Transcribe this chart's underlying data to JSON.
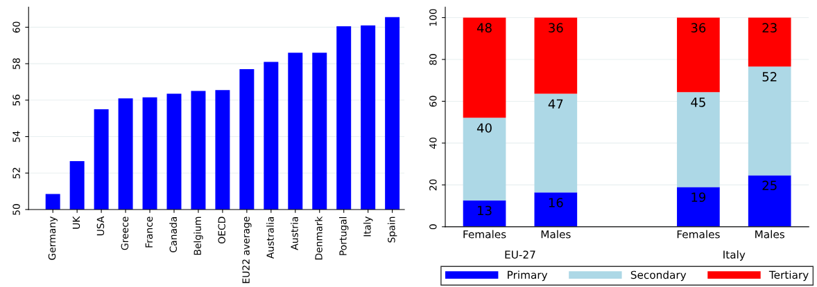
{
  "chart_data": [
    {
      "type": "bar",
      "categories": [
        "Germany",
        "UK",
        "USA",
        "Greece",
        "France",
        "Canada",
        "Belgium",
        "OECD",
        "EU22 average",
        "Australia",
        "Austria",
        "Denmark",
        "Portugal",
        "Italy",
        "Spain"
      ],
      "values": [
        50.85,
        52.65,
        55.5,
        56.1,
        56.15,
        56.35,
        56.5,
        56.55,
        57.7,
        58.1,
        58.6,
        58.6,
        60.05,
        60.1,
        60.55
      ],
      "color": "#0000ff",
      "ylim": [
        50,
        61.1
      ],
      "yticks": [
        50,
        52,
        54,
        56,
        58,
        60
      ],
      "grid": "y"
    },
    {
      "type": "bar",
      "stacked": true,
      "categories": [
        "Females",
        "Males",
        null,
        "Females",
        "Males"
      ],
      "series": [
        {
          "name": "Primary",
          "color": "#0000ff",
          "values": [
            12.6,
            16.4,
            null,
            19.0,
            24.6
          ],
          "value_labels": [
            "13",
            "16",
            null,
            "19",
            "25"
          ]
        },
        {
          "name": "Secondary",
          "color": "#add8e6",
          "values": [
            39.5,
            47.2,
            null,
            45.4,
            52.0
          ],
          "value_labels": [
            "40",
            "47",
            null,
            "45",
            "52"
          ]
        },
        {
          "name": "Tertiary",
          "color": "#ff0000",
          "values": [
            47.9,
            36.4,
            null,
            35.6,
            23.4
          ],
          "value_labels": [
            "48",
            "36",
            null,
            "36",
            "23"
          ]
        }
      ],
      "annotations": [
        "EU-27",
        "Italy"
      ],
      "ylim": [
        0,
        105
      ],
      "yticks": [
        0,
        20,
        40,
        60,
        80,
        100
      ],
      "grid": "y",
      "legend": "bottom"
    }
  ]
}
